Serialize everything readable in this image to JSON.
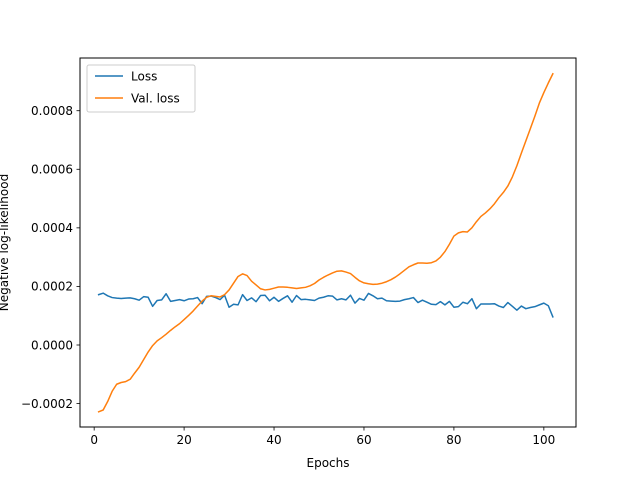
{
  "chart_data": {
    "type": "line",
    "xlabel": "Epochs",
    "ylabel": "Negative log-likelihood",
    "xlim": [
      -3.15,
      107.15
    ],
    "ylim": [
      -0.00028,
      0.00098
    ],
    "xticks": [
      0,
      20,
      40,
      60,
      80,
      100
    ],
    "xtick_labels": [
      "0",
      "20",
      "40",
      "60",
      "80",
      "100"
    ],
    "yticks": [
      -0.0002,
      0.0,
      0.0002,
      0.0004,
      0.0006,
      0.0008
    ],
    "ytick_labels": [
      "−0.0002",
      "0.0000",
      "0.0002",
      "0.0004",
      "0.0006",
      "0.0008"
    ],
    "legend_position": "top-left",
    "series": [
      {
        "name": "Loss",
        "color": "#1f77b4",
        "x": [
          1,
          2,
          3,
          4,
          5,
          6,
          7,
          8,
          9,
          10,
          11,
          12,
          13,
          14,
          15,
          16,
          17,
          18,
          19,
          20,
          21,
          22,
          23,
          24,
          25,
          26,
          27,
          28,
          29,
          30,
          31,
          32,
          33,
          34,
          35,
          36,
          37,
          38,
          39,
          40,
          41,
          42,
          43,
          44,
          45,
          46,
          47,
          48,
          49,
          50,
          51,
          52,
          53,
          54,
          55,
          56,
          57,
          58,
          59,
          60,
          61,
          62,
          63,
          64,
          65,
          66,
          67,
          68,
          69,
          70,
          71,
          72,
          73,
          74,
          75,
          76,
          77,
          78,
          79,
          80,
          81,
          82,
          83,
          84,
          85,
          86,
          87,
          88,
          89,
          90,
          91,
          92,
          93,
          94,
          95,
          96,
          97,
          98,
          99,
          100,
          101,
          102
        ],
        "y": [
          0.000172,
          0.000177,
          0.000168,
          0.000162,
          0.00016,
          0.000159,
          0.00016,
          0.000161,
          0.000158,
          0.000153,
          0.000165,
          0.000163,
          0.000132,
          0.000152,
          0.000154,
          0.000175,
          0.000149,
          0.000152,
          0.000155,
          0.000151,
          0.000157,
          0.000158,
          0.000162,
          0.000141,
          0.000166,
          0.000167,
          0.000162,
          0.000155,
          0.00017,
          0.000129,
          0.000139,
          0.000137,
          0.000172,
          0.000152,
          0.000161,
          0.000148,
          0.000169,
          0.00017,
          0.000151,
          0.000163,
          0.000149,
          0.000159,
          0.000168,
          0.000146,
          0.000169,
          0.000155,
          0.000156,
          0.000154,
          0.000152,
          0.00016,
          0.000163,
          0.000168,
          0.000167,
          0.000154,
          0.000158,
          0.000154,
          0.00017,
          0.000143,
          0.000159,
          0.000153,
          0.000176,
          0.000168,
          0.000158,
          0.00016,
          0.000151,
          0.00015,
          0.000149,
          0.00015,
          0.000155,
          0.000158,
          0.000162,
          0.000145,
          0.000153,
          0.000146,
          0.000139,
          0.000138,
          0.000148,
          0.000137,
          0.000149,
          0.000129,
          0.000131,
          0.000146,
          0.000141,
          0.000158,
          0.000124,
          0.00014,
          0.00014,
          0.00014,
          0.000141,
          0.000133,
          0.000128,
          0.000145,
          0.000132,
          0.000119,
          0.000133,
          0.000124,
          0.000128,
          0.000131,
          0.000137,
          0.000143,
          0.000134,
          9.6e-05
        ]
      },
      {
        "name": "Val. loss",
        "color": "#ff7f0e",
        "x": [
          1,
          2,
          3,
          4,
          5,
          6,
          7,
          8,
          9,
          10,
          11,
          12,
          13,
          14,
          15,
          16,
          17,
          18,
          19,
          20,
          21,
          22,
          23,
          24,
          25,
          26,
          27,
          28,
          29,
          30,
          31,
          32,
          33,
          34,
          35,
          36,
          37,
          38,
          39,
          40,
          41,
          42,
          43,
          44,
          45,
          46,
          47,
          48,
          49,
          50,
          51,
          52,
          53,
          54,
          55,
          56,
          57,
          58,
          59,
          60,
          61,
          62,
          63,
          64,
          65,
          66,
          67,
          68,
          69,
          70,
          71,
          72,
          73,
          74,
          75,
          76,
          77,
          78,
          79,
          80,
          81,
          82,
          83,
          84,
          85,
          86,
          87,
          88,
          89,
          90,
          91,
          92,
          93,
          94,
          95,
          96,
          97,
          98,
          99,
          100,
          101,
          102
        ],
        "y": [
          -0.000228,
          -0.000222,
          -0.000193,
          -0.000158,
          -0.000134,
          -0.000128,
          -0.000125,
          -0.000117,
          -9.6e-05,
          -7.6e-05,
          -5e-05,
          -2.4e-05,
          -2e-06,
          1.4e-05,
          2.5e-05,
          3.7e-05,
          5e-05,
          6.2e-05,
          7.3e-05,
          8.7e-05,
          0.000101,
          0.000116,
          0.000133,
          0.00015,
          0.000163,
          0.000168,
          0.000166,
          0.000164,
          0.000172,
          0.000188,
          0.000211,
          0.000234,
          0.000243,
          0.000237,
          0.000218,
          0.000205,
          0.000192,
          0.000188,
          0.00019,
          0.000194,
          0.000198,
          0.000198,
          0.000197,
          0.000195,
          0.000193,
          0.000195,
          0.000197,
          0.000202,
          0.00021,
          0.000222,
          0.000231,
          0.000239,
          0.000246,
          0.000252,
          0.000253,
          0.000249,
          0.000244,
          0.000231,
          0.000219,
          0.000212,
          0.000209,
          0.000207,
          0.000208,
          0.000211,
          0.000216,
          0.000223,
          0.000232,
          0.000243,
          0.000255,
          0.000267,
          0.000274,
          0.00028,
          0.00028,
          0.000279,
          0.000281,
          0.000287,
          0.0003,
          0.000319,
          0.000344,
          0.000372,
          0.000383,
          0.000387,
          0.000386,
          0.0004,
          0.000421,
          0.000439,
          0.000451,
          0.000465,
          0.000482,
          0.000503,
          0.000521,
          0.000543,
          0.000574,
          0.000612,
          0.000655,
          0.000697,
          0.000739,
          0.000781,
          0.000826,
          0.000862,
          0.000895,
          0.000926
        ]
      }
    ]
  }
}
